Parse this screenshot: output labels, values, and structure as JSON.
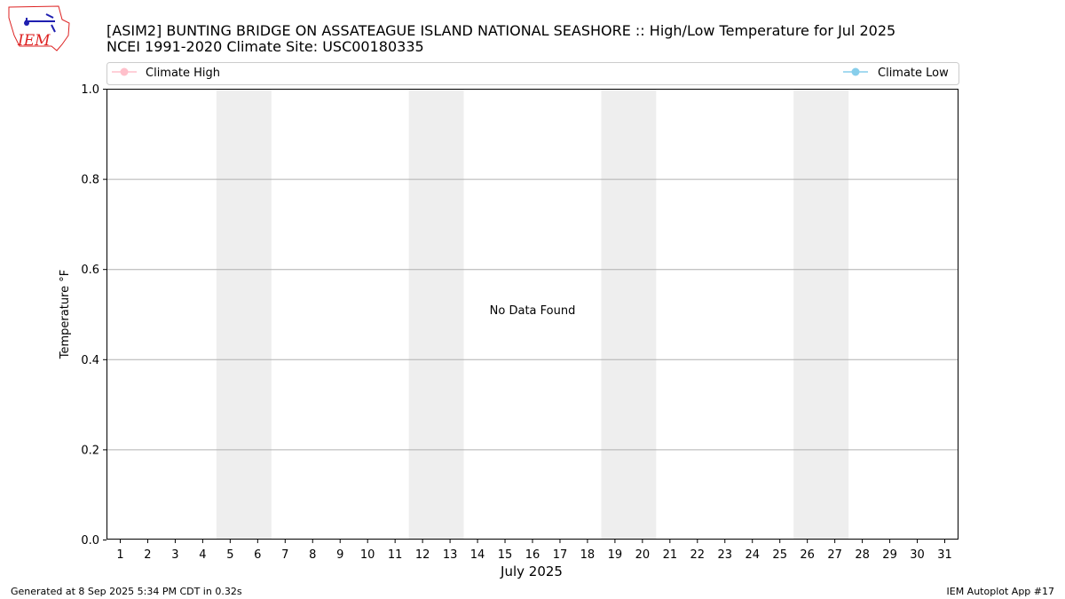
{
  "logo": {
    "text": "IEM"
  },
  "chart_data": {
    "type": "line",
    "title": "[ASIM2] BUNTING BRIDGE ON ASSATEAGUE ISLAND NATIONAL SEASHORE :: High/Low Temperature for Jul 2025",
    "subtitle": "NCEI 1991-2020 Climate Site: USC00180335",
    "xlabel": "July 2025",
    "ylabel": "Temperature °F",
    "xlim": [
      0.5,
      31.5
    ],
    "ylim": [
      0.0,
      1.0
    ],
    "x_ticks": [
      1,
      2,
      3,
      4,
      5,
      6,
      7,
      8,
      9,
      10,
      11,
      12,
      13,
      14,
      15,
      16,
      17,
      18,
      19,
      20,
      21,
      22,
      23,
      24,
      25,
      26,
      27,
      28,
      29,
      30,
      31
    ],
    "y_ticks": [
      "0.0",
      "0.2",
      "0.4",
      "0.6",
      "0.8",
      "1.0"
    ],
    "y_tick_values": [
      0.0,
      0.2,
      0.4,
      0.6,
      0.8,
      1.0
    ],
    "grid": "horizontal",
    "weekend_bands": [
      [
        4.5,
        6.5
      ],
      [
        11.5,
        13.5
      ],
      [
        18.5,
        20.5
      ],
      [
        25.5,
        27.5
      ]
    ],
    "annotation": "No Data Found",
    "series": [
      {
        "name": "Climate High",
        "color": "#ffc0cb",
        "values": []
      },
      {
        "name": "Climate Low",
        "color": "#87ceeb",
        "values": []
      }
    ],
    "legend_position": "top"
  },
  "footer": {
    "left": "Generated at 8 Sep 2025 5:34 PM CDT in 0.32s",
    "right": "IEM Autoplot App #17"
  }
}
